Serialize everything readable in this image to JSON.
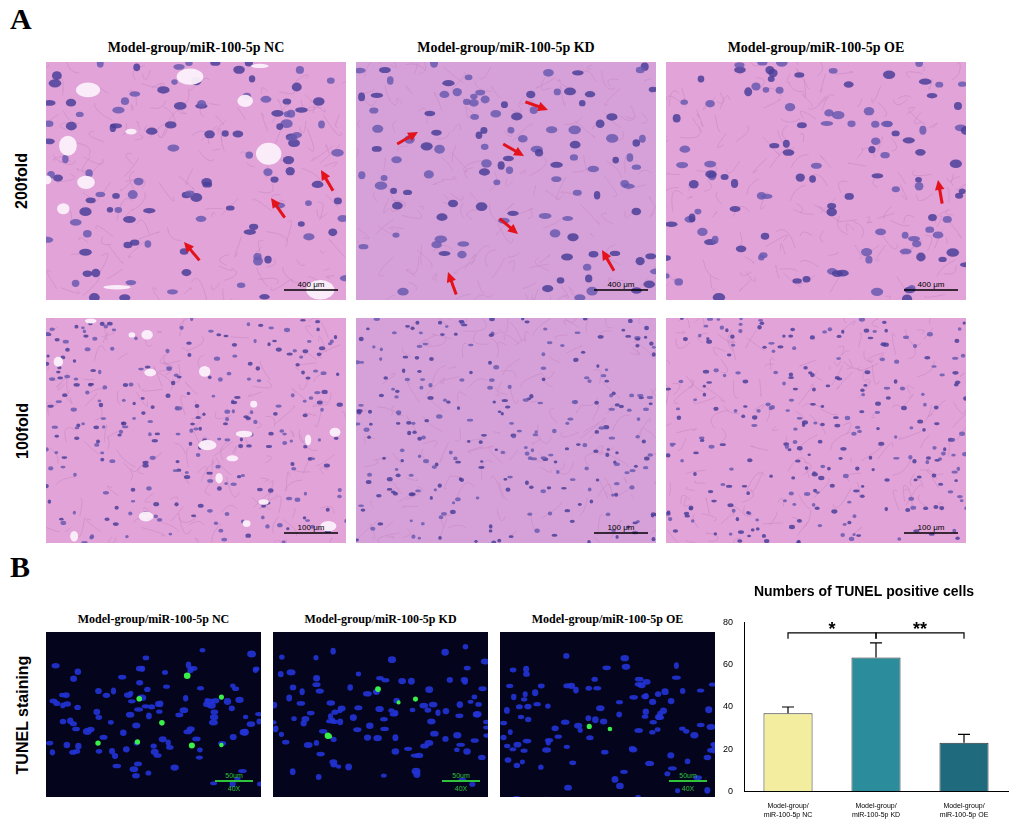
{
  "figure": {
    "panel_a": {
      "letter": "A",
      "columns": [
        "Model-group/miR-100-5p NC",
        "Model-group/miR-100-5p KD",
        "Model-group/miR-100-5p OE"
      ],
      "rows": [
        {
          "label": "200fold",
          "scale_bar": "400 μm"
        },
        {
          "label": "100fold",
          "scale_bar": "100 μm"
        }
      ]
    },
    "panel_b": {
      "letter": "B",
      "row_label": "TUNEL staining",
      "columns": [
        "Model-group/miR-100-5p NC",
        "Model-group/miR-100-5p KD",
        "Model-group/miR-100-5p OE"
      ],
      "scale_bar": "50um",
      "magnification": "40X"
    }
  },
  "chart_data": {
    "type": "bar",
    "title": "Numbers of TUNEL positive cells",
    "categories": [
      "Model-group/miR-100-5p NC",
      "Model-group/miR-100-5p KD",
      "Model-group/miR-100-5p OE"
    ],
    "values": [
      37,
      63.5,
      23
    ],
    "errors": [
      3,
      7,
      4
    ],
    "colors": [
      "#f3eda0",
      "#2b8c9c",
      "#1f6a7c"
    ],
    "ylim": [
      0,
      80
    ],
    "yticks": [
      0,
      20,
      40,
      60,
      80
    ],
    "grid": false,
    "significance": [
      {
        "between": [
          "Model-group/miR-100-5p NC",
          "Model-group/miR-100-5p KD"
        ],
        "label": "*"
      },
      {
        "between": [
          "Model-group/miR-100-5p KD",
          "Model-group/miR-100-5p OE"
        ],
        "label": "**"
      }
    ]
  }
}
